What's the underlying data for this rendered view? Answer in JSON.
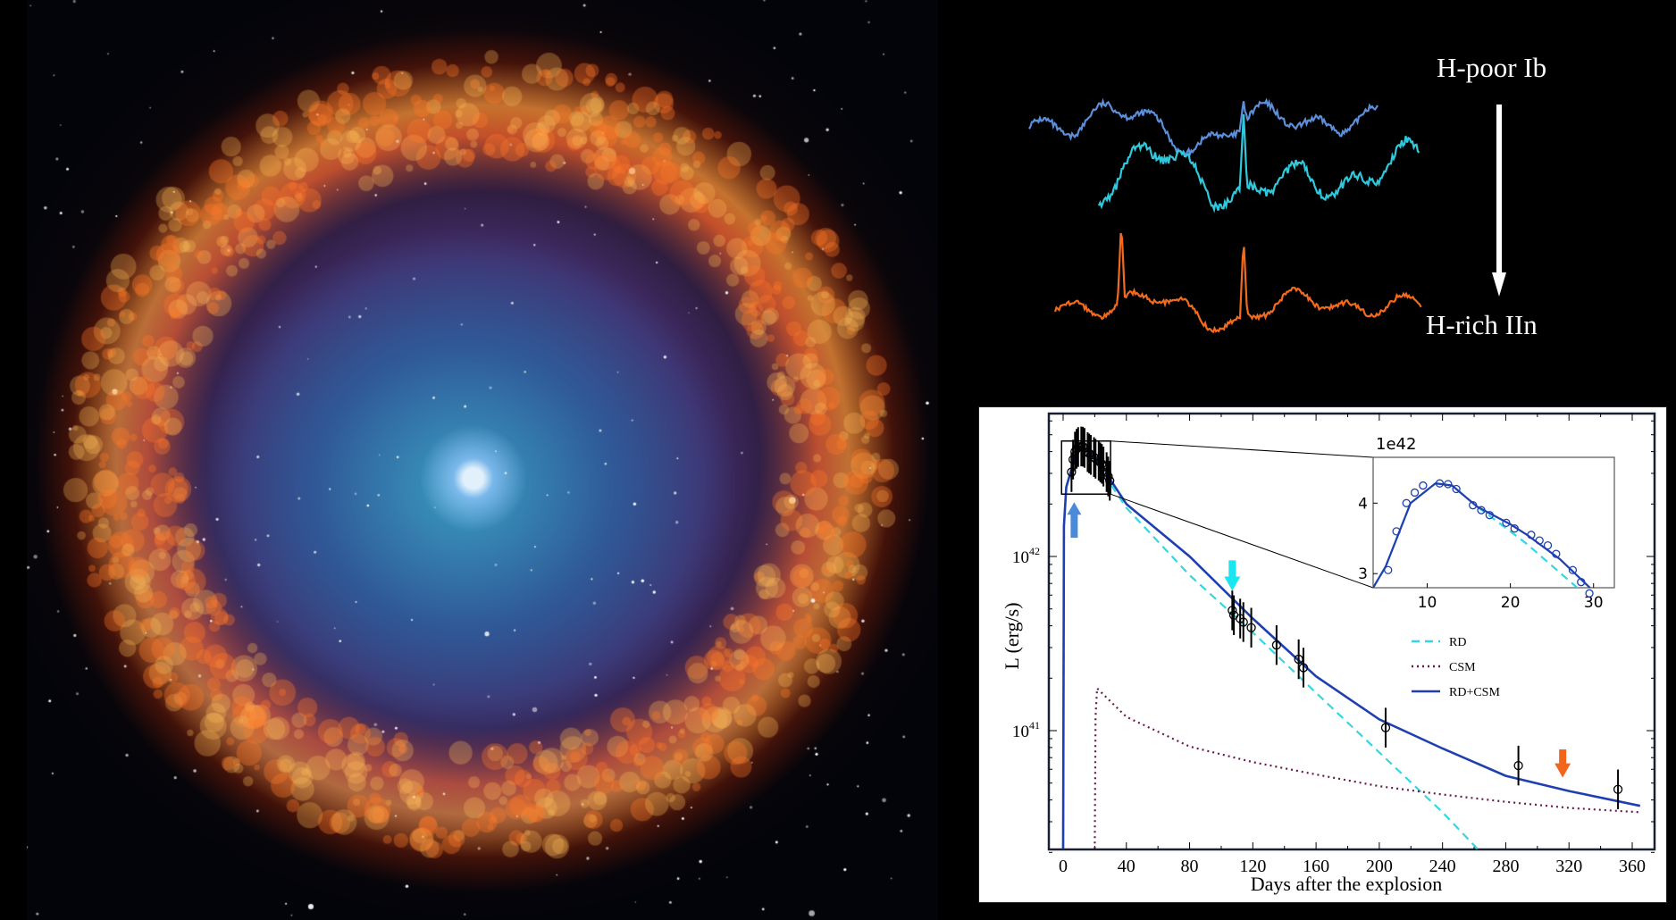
{
  "spectra": {
    "top_label": "H-poor Ib",
    "bottom_label": "H-rich IIn",
    "colors": {
      "ib": "#5b8fd9",
      "intermediate": "#2ec9dc",
      "iin": "#f26a1b"
    }
  },
  "chart_data": {
    "type": "line",
    "xlabel": "Days after the explosion",
    "ylabel": "L (erg/s)",
    "xlim": [
      -15,
      365
    ],
    "ylim": [
      2.1e+40,
      6.6e+42
    ],
    "y_scale": "log",
    "x_ticks": [
      "0",
      "40",
      "80",
      "120",
      "160",
      "200",
      "240",
      "280",
      "320",
      "360"
    ],
    "y_ticks": [
      {
        "value": 1e+42,
        "base": "10",
        "exp": "42"
      },
      {
        "value": 1e+41,
        "base": "10",
        "exp": "41"
      }
    ],
    "grid": false,
    "legend": {
      "placement": "center-right",
      "entries": [
        "RD",
        "CSM",
        "RD+CSM"
      ]
    },
    "series": [
      {
        "name": "RD",
        "style": "dashed",
        "color": "#35d6e0",
        "x": [
          0,
          0.5,
          2,
          5,
          8,
          11,
          13,
          16,
          20,
          22,
          30,
          40,
          80,
          120,
          160,
          200,
          240,
          262
        ],
        "y": [
          2.1e+40,
          1.5e+42,
          2.5e+42,
          3.1e+42,
          4e+42,
          4.28e+42,
          4.25e+42,
          3.95e+42,
          3.6e+42,
          3.42e+42,
          2.6e+42,
          1.9e+42,
          7.8e+41,
          3.66e+41,
          1.65e+41,
          7.5e+40,
          3.4e+40,
          2.1e+40
        ]
      },
      {
        "name": "CSM",
        "style": "dotted",
        "color": "#6a1a4a",
        "x": [
          20,
          20.5,
          21.5,
          40,
          80,
          120,
          160,
          200,
          240,
          280,
          320,
          365
        ],
        "y": [
          2.1e+40,
          1.2e+41,
          1.75e+41,
          1.2e+41,
          8.1e+40,
          6.6e+40,
          5.6e+40,
          4.8e+40,
          4.3e+40,
          3.9e+40,
          3.6e+40,
          3.4e+40
        ]
      },
      {
        "name": "RD+CSM",
        "style": "solid",
        "color": "#1f3fb0",
        "x": [
          0,
          0.5,
          2,
          5,
          8,
          11,
          13,
          16,
          20,
          22,
          26,
          30,
          40,
          80,
          120,
          160,
          200,
          240,
          280,
          320,
          365
        ],
        "y": [
          2.1e+40,
          1.5e+42,
          2.5e+42,
          3.1e+42,
          4e+42,
          4.28e+42,
          4.25e+42,
          3.95e+42,
          3.7e+42,
          3.55e+42,
          3.2e+42,
          2.75e+42,
          2e+42,
          1e+42,
          4.4e+41,
          2.05e+41,
          1.16e+41,
          7.9e+40,
          5.5e+40,
          4.5e+40,
          3.7e+40
        ]
      }
    ],
    "observations": {
      "x": [
        5.3,
        6.3,
        7.5,
        8.5,
        9.5,
        11.5,
        12.5,
        13.5,
        15.5,
        16.5,
        17.5,
        19.5,
        20.5,
        22.5,
        23.5,
        24.5,
        25.5,
        27.5,
        28.5,
        29.5,
        107,
        108,
        112,
        114,
        119,
        135,
        149,
        152,
        204,
        288,
        351
      ],
      "y": [
        3.05e+42,
        3.6e+42,
        4e+42,
        4.15e+42,
        4.25e+42,
        4.28e+42,
        4.27e+42,
        4.2e+42,
        3.97e+42,
        3.9e+42,
        3.83e+42,
        3.72e+42,
        3.64e+42,
        3.55e+42,
        3.47e+42,
        3.4e+42,
        3.28e+42,
        3.05e+42,
        2.88e+42,
        2.72e+42,
        4.9e+41,
        4.6e+41,
        4.4e+41,
        4.2e+41,
        3.9e+41,
        3.1e+41,
        2.57e+41,
        2.3e+41,
        1.04e+41,
        6.3e+40,
        4.6e+40
      ],
      "error_factor": 1.3
    },
    "zoom_box": {
      "x": [
        -1,
        30
      ],
      "y": [
        2.28e+42,
        4.6e+42
      ]
    },
    "arrows": [
      {
        "day": 7,
        "direction": "up",
        "color": "#4a8ad8"
      },
      {
        "day": 107,
        "direction": "down",
        "color": "#19e6ef"
      },
      {
        "day": 316,
        "direction": "down",
        "color": "#f2651c"
      }
    ],
    "inset": {
      "scale_label": "1e42",
      "xlim": [
        3.5,
        32.5
      ],
      "ylim": [
        2.8,
        4.65
      ],
      "x_ticks": [
        "10",
        "20",
        "30"
      ],
      "y_ticks": [
        "3",
        "4"
      ]
    }
  }
}
